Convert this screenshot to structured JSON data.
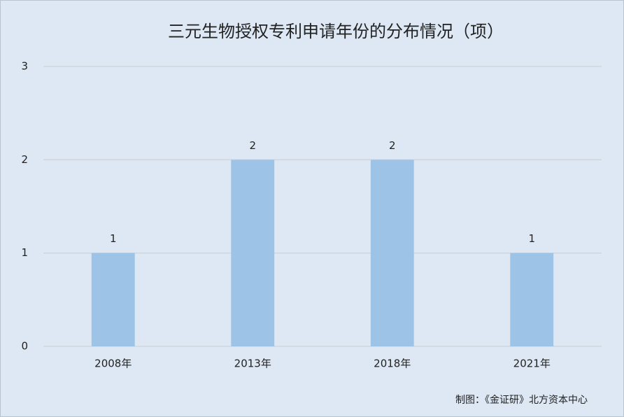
{
  "chart_data": {
    "type": "bar",
    "title": "三元生物授权专利申请年份的分布情况（项）",
    "categories": [
      "2008年",
      "2013年",
      "2018年",
      "2021年"
    ],
    "values": [
      1,
      2,
      2,
      1
    ],
    "color": "#9dc3e6",
    "ylim": [
      0,
      3
    ],
    "yticks": [
      0,
      1,
      2,
      3
    ],
    "grid": true,
    "data_labels": true,
    "source": "制图：《金证研》北方资本中心"
  }
}
